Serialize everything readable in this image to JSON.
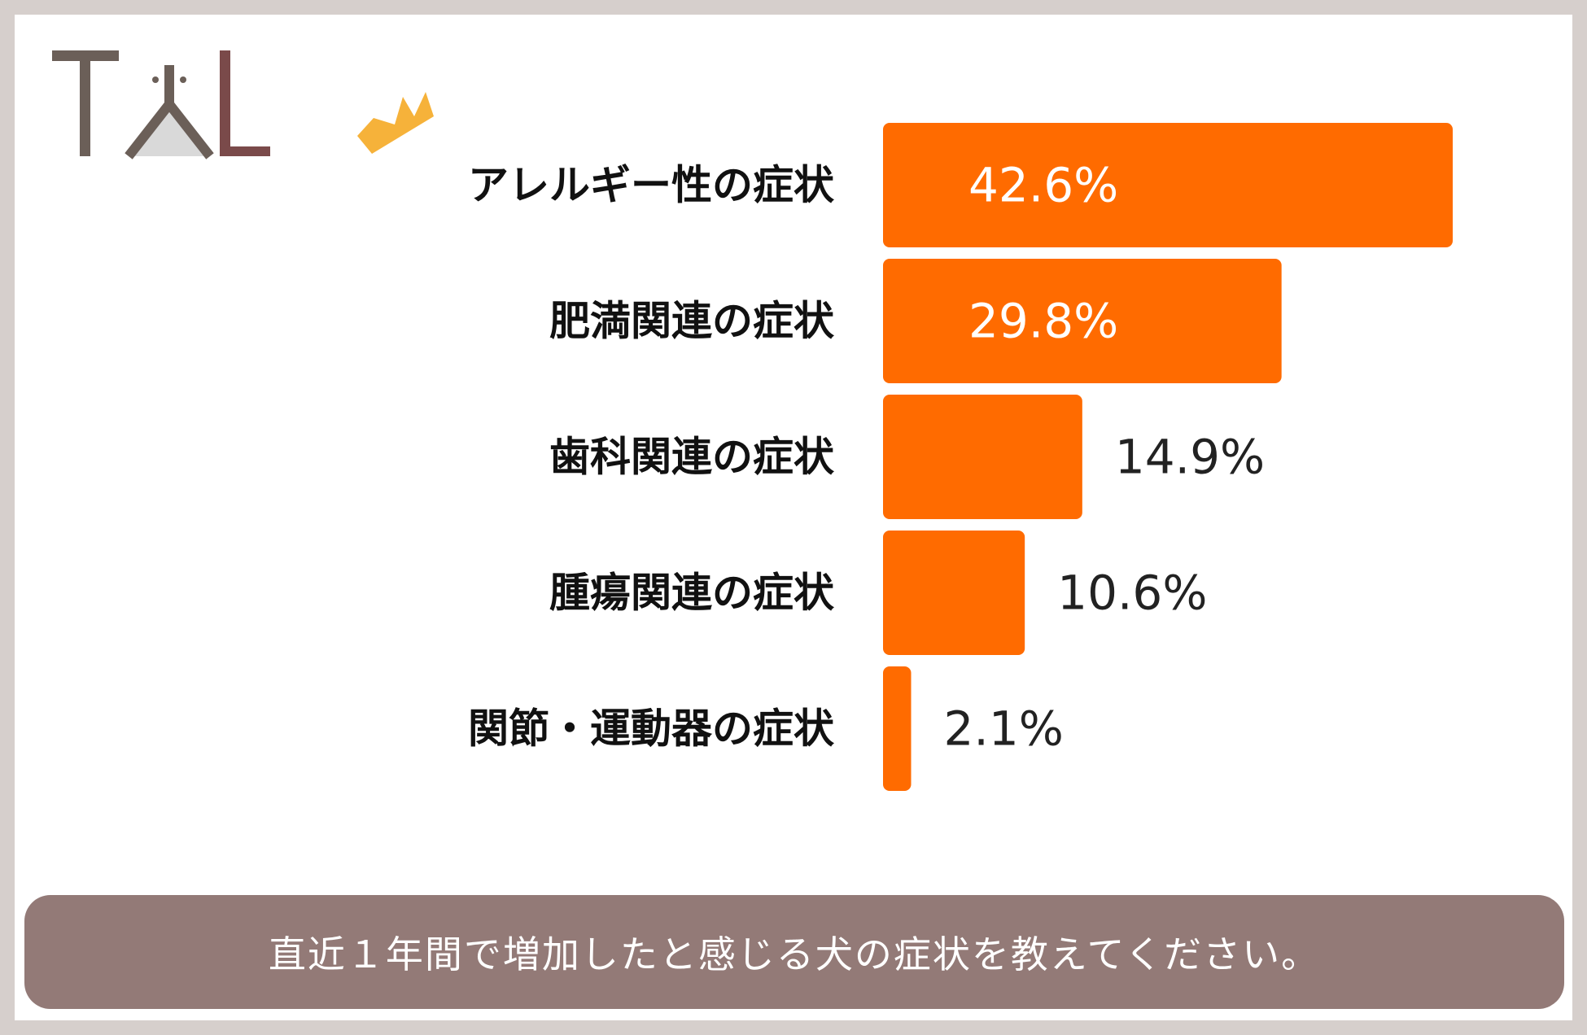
{
  "logo": {
    "text": "TAL",
    "icon": "tal-logo-icon"
  },
  "colors": {
    "bar": "#ff6b00",
    "crown": "#f6b23a",
    "footer_bg": "#937a77",
    "value_inside": "#ffffff",
    "value_outside": "#222222",
    "background": "#d6cfcc"
  },
  "chart_data": {
    "type": "bar",
    "orientation": "horizontal",
    "categories": [
      "アレルギー性の症状",
      "肥満関連の症状",
      "歯科関連の症状",
      "腫瘍関連の症状",
      "関節・運動器の症状"
    ],
    "values": [
      42.6,
      29.8,
      14.9,
      10.6,
      2.1
    ],
    "value_labels": [
      "42.6%",
      "29.8%",
      "14.9%",
      "10.6%",
      "2.1%"
    ],
    "xlim": [
      0,
      42.6
    ],
    "grid": false,
    "legend": "none"
  },
  "footer": {
    "caption": "直近１年間で増加したと感じる犬の症状を教えてください。"
  }
}
